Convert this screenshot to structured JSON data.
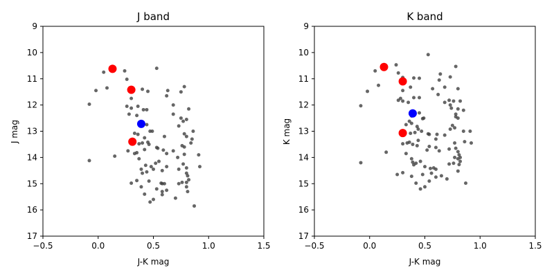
{
  "chart_data": [
    {
      "type": "scatter",
      "title": "J band",
      "xlabel": "J-K mag",
      "ylabel": "J mag",
      "xlim": [
        -0.5,
        1.5
      ],
      "ylim": [
        17,
        9
      ],
      "y_inverted": true,
      "xticks": [
        "−0.5",
        "0.0",
        "0.5",
        "1.0",
        "1.5"
      ],
      "yticks": [
        "9",
        "10",
        "11",
        "12",
        "13",
        "14",
        "15",
        "16",
        "17"
      ],
      "grid": false,
      "colors": {
        "field": "#404040",
        "red": "#ff0000",
        "blue": "#0000ff"
      },
      "series": [
        {
          "role": "field",
          "color": "#404040",
          "points": [
            [
              0.05,
              10.75
            ],
            [
              0.24,
              10.7
            ],
            [
              0.53,
              10.6
            ],
            [
              0.26,
              11.02
            ],
            [
              -0.02,
              11.45
            ],
            [
              0.08,
              11.35
            ],
            [
              0.78,
              11.3
            ],
            [
              0.4,
              11.4
            ],
            [
              0.45,
              11.48
            ],
            [
              0.63,
              11.45
            ],
            [
              0.75,
              11.5
            ],
            [
              0.62,
              11.65
            ],
            [
              0.3,
              11.75
            ],
            [
              0.26,
              12.05
            ],
            [
              0.3,
              12.12
            ],
            [
              0.36,
              12.05
            ],
            [
              0.41,
              12.18
            ],
            [
              0.44,
              12.18
            ],
            [
              0.68,
              12.0
            ],
            [
              0.82,
              12.15
            ],
            [
              -0.08,
              11.97
            ],
            [
              0.35,
              12.4
            ],
            [
              0.28,
              12.35
            ],
            [
              0.68,
              12.35
            ],
            [
              0.75,
              12.5
            ],
            [
              0.8,
              12.55
            ],
            [
              0.77,
              12.62
            ],
            [
              0.73,
              12.8
            ],
            [
              0.44,
              12.75
            ],
            [
              0.47,
              13.0
            ],
            [
              0.49,
              13.0
            ],
            [
              0.33,
              13.08
            ],
            [
              0.36,
              13.12
            ],
            [
              0.42,
              13.25
            ],
            [
              0.78,
              13.1
            ],
            [
              0.8,
              13.2
            ],
            [
              0.86,
              13.0
            ],
            [
              0.85,
              13.3
            ],
            [
              0.6,
              13.2
            ],
            [
              0.31,
              13.48
            ],
            [
              0.37,
              13.48
            ],
            [
              0.4,
              13.45
            ],
            [
              0.45,
              13.42
            ],
            [
              0.46,
              13.5
            ],
            [
              0.76,
              13.55
            ],
            [
              0.78,
              13.6
            ],
            [
              0.84,
              13.45
            ],
            [
              0.91,
              13.9
            ],
            [
              0.27,
              13.75
            ],
            [
              0.33,
              13.85
            ],
            [
              0.35,
              13.82
            ],
            [
              0.42,
              13.7
            ],
            [
              0.53,
              13.62
            ],
            [
              0.54,
              13.65
            ],
            [
              0.59,
              13.72
            ],
            [
              0.62,
              13.85
            ],
            [
              0.68,
              13.75
            ],
            [
              0.72,
              14.0
            ],
            [
              0.78,
              13.88
            ],
            [
              -0.08,
              14.12
            ],
            [
              0.15,
              13.95
            ],
            [
              0.37,
              14.05
            ],
            [
              0.43,
              14.3
            ],
            [
              0.52,
              14.22
            ],
            [
              0.55,
              14.15
            ],
            [
              0.48,
              14.35
            ],
            [
              0.39,
              14.45
            ],
            [
              0.4,
              14.6
            ],
            [
              0.44,
              14.55
            ],
            [
              0.5,
              14.45
            ],
            [
              0.58,
              14.5
            ],
            [
              0.62,
              14.35
            ],
            [
              0.73,
              14.45
            ],
            [
              0.77,
              14.25
            ],
            [
              0.8,
              14.4
            ],
            [
              0.92,
              14.35
            ],
            [
              0.8,
              14.6
            ],
            [
              0.81,
              14.7
            ],
            [
              0.82,
              14.85
            ],
            [
              0.8,
              14.95
            ],
            [
              0.76,
              14.95
            ],
            [
              0.73,
              15.0
            ],
            [
              0.6,
              15.0
            ],
            [
              0.57,
              14.98
            ],
            [
              0.58,
              15.0
            ],
            [
              0.46,
              14.9
            ],
            [
              0.35,
              14.88
            ],
            [
              0.3,
              14.98
            ],
            [
              0.39,
              15.12
            ],
            [
              0.53,
              15.2
            ],
            [
              0.58,
              15.3
            ],
            [
              0.62,
              15.25
            ],
            [
              0.8,
              15.12
            ],
            [
              0.81,
              15.3
            ],
            [
              0.58,
              15.42
            ],
            [
              0.42,
              15.4
            ],
            [
              0.5,
              15.6
            ],
            [
              0.47,
              15.7
            ],
            [
              0.7,
              15.55
            ],
            [
              0.87,
              15.85
            ]
          ]
        },
        {
          "role": "highlight",
          "color": "#ff0000",
          "points": [
            [
              0.13,
              10.62
            ],
            [
              0.3,
              11.42
            ],
            [
              0.31,
              13.4
            ]
          ]
        },
        {
          "role": "highlight",
          "color": "#0000ff",
          "points": [
            [
              0.39,
              12.72
            ]
          ]
        }
      ]
    },
    {
      "type": "scatter",
      "title": "K band",
      "xlabel": "J-K mag",
      "ylabel": "K mag",
      "xlim": [
        -0.5,
        1.5
      ],
      "ylim": [
        17,
        9
      ],
      "y_inverted": true,
      "xticks": [
        "−0.5",
        "0.0",
        "0.5",
        "1.0",
        "1.5"
      ],
      "yticks": [
        "9",
        "10",
        "11",
        "12",
        "13",
        "14",
        "15",
        "16",
        "17"
      ],
      "grid": false,
      "colors": {
        "field": "#404040",
        "red": "#ff0000",
        "blue": "#0000ff"
      },
      "series": [
        {
          "role": "field",
          "color": "#404040",
          "points": [
            [
              0.53,
              10.08
            ],
            [
              0.24,
              10.47
            ],
            [
              0.78,
              10.53
            ],
            [
              0.05,
              10.7
            ],
            [
              0.26,
              10.78
            ],
            [
              0.64,
              10.82
            ],
            [
              0.3,
              10.95
            ],
            [
              0.4,
              10.97
            ],
            [
              0.45,
              10.98
            ],
            [
              0.73,
              10.93
            ],
            [
              0.63,
              11.05
            ],
            [
              0.08,
              11.25
            ],
            [
              -0.02,
              11.48
            ],
            [
              0.37,
              11.32
            ],
            [
              0.68,
              11.32
            ],
            [
              0.8,
              11.38
            ],
            [
              0.3,
              11.45
            ],
            [
              0.57,
              11.38
            ],
            [
              0.62,
              11.6
            ],
            [
              0.4,
              11.72
            ],
            [
              0.45,
              11.72
            ],
            [
              0.26,
              11.82
            ],
            [
              0.28,
              11.75
            ],
            [
              0.3,
              11.85
            ],
            [
              0.35,
              11.9
            ],
            [
              0.68,
              11.9
            ],
            [
              0.72,
              11.82
            ],
            [
              0.73,
              12.0
            ],
            [
              0.76,
              11.85
            ],
            [
              0.82,
              11.85
            ],
            [
              0.74,
              12.12
            ],
            [
              0.8,
              12.15
            ],
            [
              0.85,
              12.2
            ],
            [
              -0.08,
              12.03
            ],
            [
              0.45,
              12.3
            ],
            [
              0.38,
              12.42
            ],
            [
              0.48,
              12.52
            ],
            [
              0.49,
              12.5
            ],
            [
              0.78,
              12.35
            ],
            [
              0.78,
              12.45
            ],
            [
              0.8,
              12.5
            ],
            [
              0.33,
              12.75
            ],
            [
              0.36,
              12.62
            ],
            [
              0.38,
              12.7
            ],
            [
              0.43,
              12.82
            ],
            [
              0.44,
              12.92
            ],
            [
              0.75,
              12.78
            ],
            [
              0.77,
              12.87
            ],
            [
              0.73,
              12.92
            ],
            [
              0.41,
              13.05
            ],
            [
              0.37,
              13.08
            ],
            [
              0.47,
              13.0
            ],
            [
              0.53,
              13.1
            ],
            [
              0.54,
              13.12
            ],
            [
              0.61,
              13.12
            ],
            [
              0.68,
              13.15
            ],
            [
              0.6,
              13.3
            ],
            [
              0.85,
              13.0
            ],
            [
              0.91,
              13.0
            ],
            [
              0.86,
              13.4
            ],
            [
              0.92,
              13.45
            ],
            [
              0.34,
              13.45
            ],
            [
              0.3,
              13.48
            ],
            [
              0.36,
              13.42
            ],
            [
              0.39,
              13.5
            ],
            [
              0.44,
              13.35
            ],
            [
              0.43,
              13.55
            ],
            [
              0.52,
              13.72
            ],
            [
              0.54,
              13.58
            ],
            [
              0.6,
              13.62
            ],
            [
              0.63,
              13.75
            ],
            [
              0.72,
              13.68
            ],
            [
              0.77,
              13.45
            ],
            [
              0.78,
              13.65
            ],
            [
              0.8,
              13.78
            ],
            [
              0.81,
              13.9
            ],
            [
              0.82,
              14.0
            ],
            [
              0.8,
              14.05
            ],
            [
              0.82,
              14.15
            ],
            [
              0.81,
              14.27
            ],
            [
              0.77,
              14.0
            ],
            [
              0.76,
              14.22
            ],
            [
              0.72,
              14.25
            ],
            [
              0.15,
              13.8
            ],
            [
              0.33,
              13.85
            ],
            [
              0.38,
              14.05
            ],
            [
              0.39,
              14.18
            ],
            [
              0.4,
              14.28
            ],
            [
              0.42,
              14.22
            ],
            [
              0.46,
              14.15
            ],
            [
              0.5,
              14.35
            ],
            [
              0.55,
              14.42
            ],
            [
              0.58,
              14.4
            ],
            [
              0.6,
              14.45
            ],
            [
              0.8,
              14.52
            ],
            [
              -0.08,
              14.2
            ],
            [
              0.25,
              14.65
            ],
            [
              0.3,
              14.58
            ],
            [
              0.38,
              14.72
            ],
            [
              0.48,
              14.65
            ],
            [
              0.56,
              14.6
            ],
            [
              0.6,
              14.75
            ],
            [
              0.65,
              14.7
            ],
            [
              0.7,
              14.82
            ],
            [
              0.54,
              14.9
            ],
            [
              0.42,
              14.98
            ],
            [
              0.46,
              15.2
            ],
            [
              0.5,
              15.12
            ],
            [
              0.87,
              14.98
            ]
          ]
        },
        {
          "role": "highlight",
          "color": "#ff0000",
          "points": [
            [
              0.13,
              10.55
            ],
            [
              0.3,
              11.1
            ],
            [
              0.3,
              13.07
            ]
          ]
        },
        {
          "role": "highlight",
          "color": "#0000ff",
          "points": [
            [
              0.39,
              12.32
            ]
          ]
        }
      ]
    }
  ]
}
